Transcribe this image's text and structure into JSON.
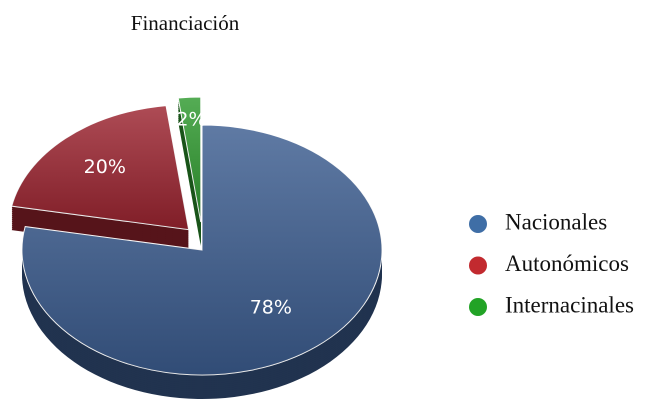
{
  "chart_data": {
    "type": "pie",
    "title": "Financiación",
    "categories": [
      "Nacionales",
      "Autonómicos",
      "Internacinales"
    ],
    "values": [
      78,
      20,
      2
    ],
    "value_labels": [
      "78%",
      "20%",
      "2%"
    ],
    "colors": [
      "#3c5d90",
      "#9c2430",
      "#2f9a2f"
    ],
    "legend_colors": [
      "#3f6ea6",
      "#c22a2f",
      "#22a326"
    ],
    "legend": "right"
  }
}
